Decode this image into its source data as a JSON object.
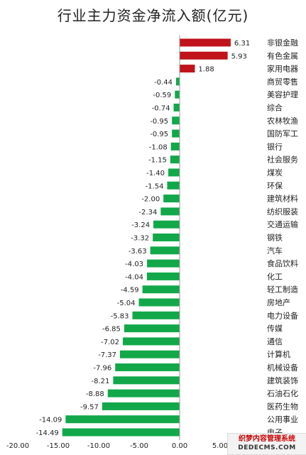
{
  "chart_data": {
    "type": "bar",
    "orientation": "horizontal",
    "title": "行业主力资金净流入额(亿元)",
    "categories": [
      "非银金融",
      "有色金属",
      "家用电器",
      "商贸零售",
      "美容护理",
      "综合",
      "农林牧渔",
      "国防军工",
      "银行",
      "社会服务",
      "煤炭",
      "环保",
      "建筑材料",
      "纺织服装",
      "交通运输",
      "钢铁",
      "汽车",
      "食品饮料",
      "化工",
      "轻工制造",
      "房地产",
      "电力设备",
      "传媒",
      "通信",
      "计算机",
      "机械设备",
      "建筑装饰",
      "石油石化",
      "医药生物",
      "公用事业",
      "电子"
    ],
    "values": [
      6.31,
      5.93,
      1.88,
      -0.44,
      -0.59,
      -0.74,
      -0.95,
      -0.95,
      -1.08,
      -1.15,
      -1.4,
      -1.54,
      -2.0,
      -2.34,
      -3.24,
      -3.32,
      -3.63,
      -4.03,
      -4.04,
      -4.59,
      -5.04,
      -5.83,
      -6.85,
      -7.02,
      -7.37,
      -7.96,
      -8.21,
      -8.88,
      -9.57,
      -14.09,
      -14.49
    ],
    "value_labels": [
      "6.31",
      "5.93",
      "1.88",
      "-0.44",
      "-0.59",
      "-0.74",
      "-0.95",
      "-0.95",
      "-1.08",
      "-1.15",
      "-1.40",
      "-1.54",
      "-2.00",
      "-2.34",
      "-3.24",
      "-3.32",
      "-3.63",
      "-4.03",
      "-4.04",
      "-4.59",
      "-5.04",
      "-5.83",
      "-6.85",
      "-7.02",
      "-7.37",
      "-7.96",
      "-8.21",
      "-8.88",
      "-9.57",
      "-14.09",
      "-14.49"
    ],
    "xlim": [
      -20,
      10
    ],
    "x_ticks": [
      "-20.00",
      "-15.00",
      "-10.00",
      "-5.00",
      "0.00",
      "5.00"
    ],
    "grid": false,
    "colors": {
      "positive": "#c0131b",
      "negative": "#12a84a"
    }
  },
  "watermark": {
    "line1": "织梦内容管理系统",
    "line2": "DEDECMS.COM"
  }
}
